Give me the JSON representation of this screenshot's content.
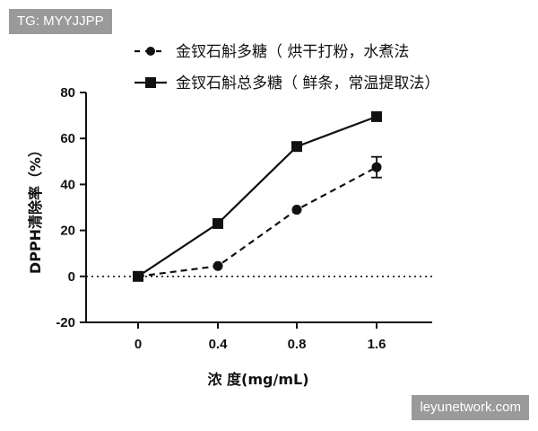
{
  "watermarks": {
    "top_left": "TG: MYYJJPP",
    "bottom_right": "leyunetwork.com"
  },
  "colors": {
    "series": "#111111",
    "zero_line": "#111111",
    "background": "#ffffff"
  },
  "chart_data": {
    "type": "line",
    "categories": [
      "0",
      "0.4",
      "0.8",
      "1.6"
    ],
    "xlabel": "浓 度(mg/mL)",
    "ylabel": "DPPH清除率（%）",
    "ylim": [
      -20,
      80
    ],
    "yticks": [
      "-20",
      "0",
      "20",
      "40",
      "60",
      "80"
    ],
    "grid": false,
    "legend_position": "top",
    "reference_line": {
      "y": 0,
      "style": "dotted"
    },
    "series": [
      {
        "name": "金钗石斛多糖（ 烘干打粉，水煮法",
        "marker": "circle",
        "line_style": "dashed",
        "values": [
          0,
          4.5,
          29,
          47.5
        ],
        "errors": [
          0,
          0,
          0,
          4.5
        ]
      },
      {
        "name": "金钗石斛总多糖（ 鲜条，常温提取法）",
        "marker": "square",
        "line_style": "solid",
        "values": [
          0,
          23,
          56.5,
          69.5
        ],
        "errors": [
          0,
          0,
          0,
          0
        ]
      }
    ]
  }
}
